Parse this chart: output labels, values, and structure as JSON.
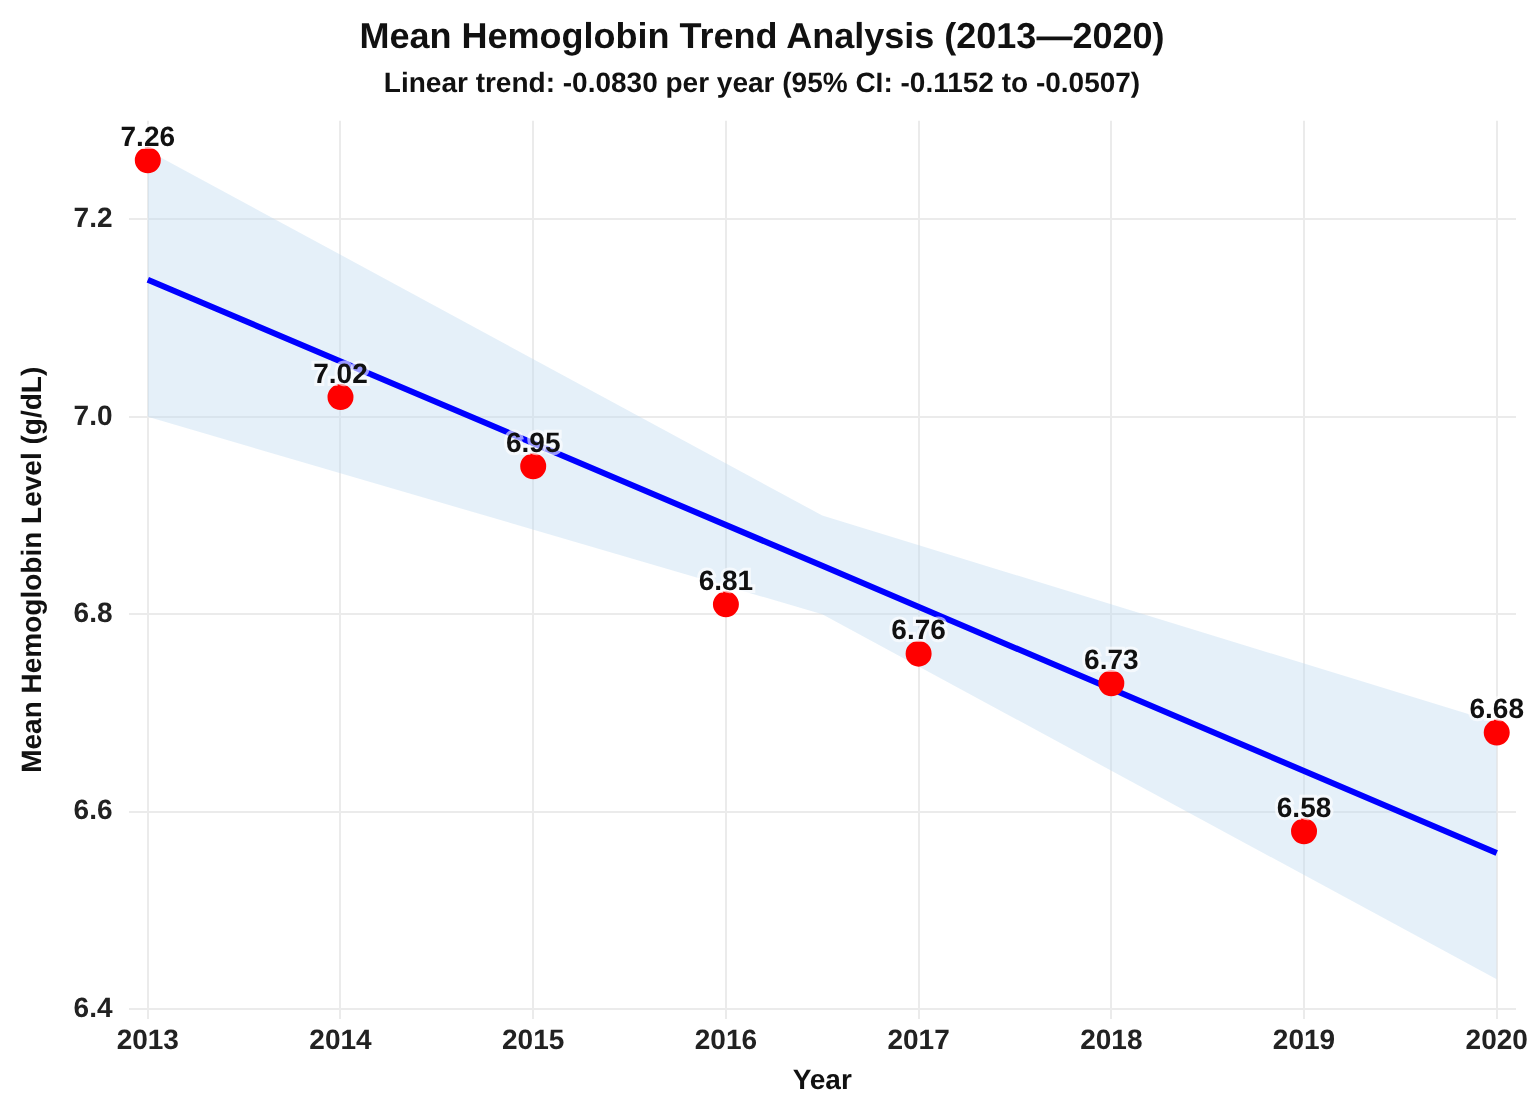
{
  "chart_data": {
    "type": "scatter",
    "title": "Mean Hemoglobin Trend Analysis (2013—2020)",
    "subtitle": "Linear trend: -0.0830 per year (95% CI: -0.1152 to -0.0507)",
    "xlabel": "Year",
    "ylabel": "Mean Hemoglobin Level (g/dL)",
    "x": [
      2013,
      2014,
      2015,
      2016,
      2017,
      2018,
      2019,
      2020
    ],
    "series": [
      {
        "type": "line",
        "color": "#0000ff",
        "x": [
          2013,
          2016.5,
          2020
        ],
        "values": [
          7.139,
          6.849,
          6.558
        ],
        "lower": [
          7.0,
          6.8,
          6.43
        ],
        "upper": [
          7.27,
          6.9,
          6.69
        ],
        "marker": "none",
        "line_style": "solid"
      },
      {
        "color": "#ff0000",
        "values": [
          7.26,
          7.02,
          6.95,
          6.81,
          6.76,
          6.73,
          6.58,
          6.68
        ],
        "value_labels": [
          "7.26",
          "7.02",
          "6.95",
          "6.81",
          "6.76",
          "6.73",
          "6.58",
          "6.68"
        ],
        "marker": "circle"
      }
    ],
    "xlim": [
      2012.9,
      2020.1
    ],
    "xticks": [
      2013,
      2014,
      2015,
      2016,
      2017,
      2018,
      2019,
      2020
    ],
    "ylim": [
      6.39,
      7.3
    ],
    "yticks": [
      6.4,
      6.6,
      6.8,
      {
        "value": 7.0,
        "label": "7.0"
      },
      7.2
    ],
    "grid": true,
    "legend": false
  }
}
